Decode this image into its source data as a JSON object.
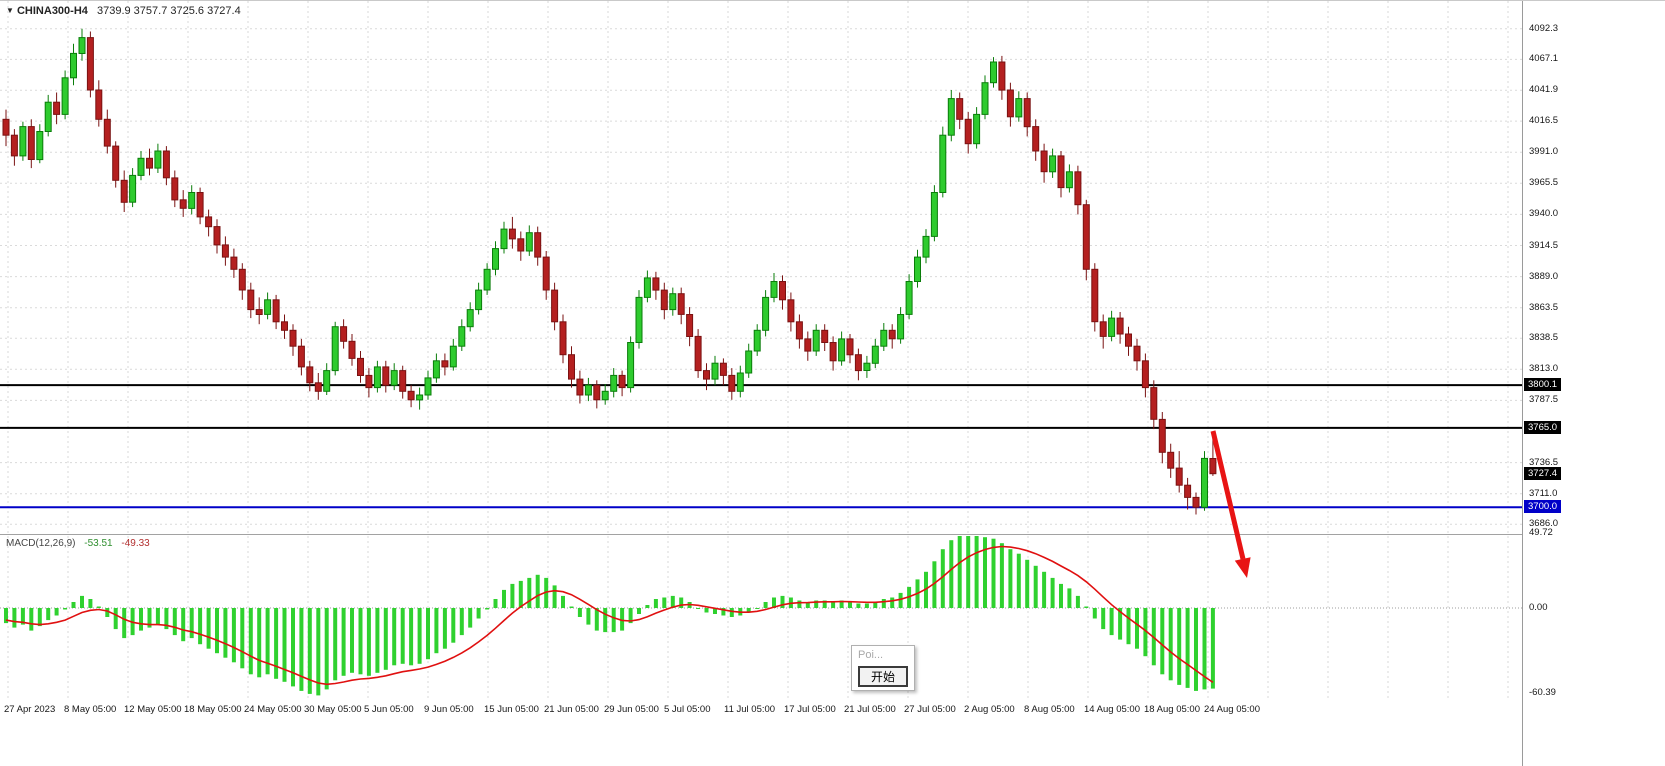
{
  "title": {
    "arrow": "▼",
    "symbol": "CHINA300-H4",
    "ohlc": "3739.9 3757.7 3725.6 3727.4"
  },
  "macd_label": {
    "name": "MACD(12,26,9)",
    "value": "-53.51",
    "signal": "-49.33"
  },
  "price_axis": {
    "labels": [
      "4092.3",
      "4067.1",
      "4041.9",
      "4016.5",
      "3991.0",
      "3965.5",
      "3940.0",
      "3914.5",
      "3889.0",
      "3863.5",
      "3838.5",
      "3813.0",
      "3787.5",
      "3736.5",
      "3711.0",
      "3686.0"
    ],
    "tags": [
      {
        "text": "3800.1",
        "bg": "#000000"
      },
      {
        "text": "3765.0",
        "bg": "#000000"
      },
      {
        "text": "3727.4",
        "bg": "#000000"
      },
      {
        "text": "3700.0",
        "bg": "#0000c8"
      }
    ],
    "macd_labels": [
      "49.72",
      "0.00",
      "-60.39"
    ]
  },
  "time_axis": {
    "labels": [
      "27 Apr 2023",
      "8 May 05:00",
      "12 May 05:00",
      "18 May 05:00",
      "24 May 05:00",
      "30 May 05:00",
      "5 Jun 05:00",
      "9 Jun 05:00",
      "15 Jun 05:00",
      "21 Jun 05:00",
      "29 Jun 05:00",
      "5 Jul 05:00",
      "11 Jul 05:00",
      "17 Jul 05:00",
      "21 Jul 05:00",
      "27 Jul 05:00",
      "2 Aug 05:00",
      "8 Aug 05:00",
      "14 Aug 05:00",
      "18 Aug 05:00",
      "24 Aug 05:00"
    ]
  },
  "popup": {
    "item": "Poi...",
    "button": "开始"
  },
  "colors": {
    "up": "#2ecb2e",
    "up_border": "#0a7d0a",
    "down": "#b42020",
    "down_border": "#7a1212",
    "histogram": "#2fd12f",
    "signal_line": "#e01010",
    "level_black": "#000000",
    "level_blue": "#0000c8",
    "arrow": "#e81414"
  },
  "chart_data": [
    {
      "type": "candlestick",
      "symbol": "CHINA300",
      "timeframe": "H4",
      "last_ohlc": {
        "open": 3739.9,
        "high": 3757.7,
        "low": 3725.6,
        "close": 3727.4
      },
      "ylim": [
        3678,
        4115
      ],
      "y_ticks": [
        4092.3,
        4067.1,
        4041.9,
        4016.5,
        3991.0,
        3965.5,
        3940.0,
        3914.5,
        3889.0,
        3863.5,
        3838.5,
        3813.0,
        3787.5,
        3736.5,
        3711.0,
        3686.0
      ],
      "x_labels": [
        "27 Apr 2023",
        "8 May 05:00",
        "12 May 05:00",
        "18 May 05:00",
        "24 May 05:00",
        "30 May 05:00",
        "5 Jun 05:00",
        "9 Jun 05:00",
        "15 Jun 05:00",
        "21 Jun 05:00",
        "29 Jun 05:00",
        "5 Jul 05:00",
        "11 Jul 05:00",
        "17 Jul 05:00",
        "21 Jul 05:00",
        "27 Jul 05:00",
        "2 Aug 05:00",
        "8 Aug 05:00",
        "14 Aug 05:00",
        "18 Aug 05:00",
        "24 Aug 05:00"
      ],
      "hlines": [
        {
          "value": 3800.1,
          "color": "#000000"
        },
        {
          "value": 3765.0,
          "color": "#000000"
        },
        {
          "value": 3700.0,
          "color": "#0000c8"
        }
      ],
      "current_price": 3727.4,
      "candles": [
        [
          4018,
          4026,
          3996,
          4005
        ],
        [
          4005,
          4010,
          3980,
          3988
        ],
        [
          3988,
          4016,
          3984,
          4012
        ],
        [
          4012,
          4018,
          3978,
          3985
        ],
        [
          3985,
          4014,
          3982,
          4008
        ],
        [
          4008,
          4038,
          4004,
          4032
        ],
        [
          4032,
          4040,
          4014,
          4022
        ],
        [
          4022,
          4058,
          4018,
          4052
        ],
        [
          4052,
          4080,
          4046,
          4072
        ],
        [
          4072,
          4092.3,
          4066,
          4085
        ],
        [
          4085,
          4090,
          4036,
          4042
        ],
        [
          4042,
          4050,
          4012,
          4018
        ],
        [
          4018,
          4026,
          3990,
          3996
        ],
        [
          3996,
          4000,
          3962,
          3968
        ],
        [
          3968,
          3976,
          3942,
          3950
        ],
        [
          3950,
          3978,
          3946,
          3972
        ],
        [
          3972,
          3992,
          3968,
          3986
        ],
        [
          3986,
          3994,
          3972,
          3978
        ],
        [
          3978,
          3998,
          3974,
          3992
        ],
        [
          3992,
          3996,
          3964,
          3970
        ],
        [
          3970,
          3976,
          3946,
          3952
        ],
        [
          3952,
          3960,
          3938,
          3945
        ],
        [
          3945,
          3964,
          3940,
          3958
        ],
        [
          3958,
          3962,
          3932,
          3938
        ],
        [
          3938,
          3944,
          3922,
          3930
        ],
        [
          3930,
          3936,
          3908,
          3915
        ],
        [
          3915,
          3922,
          3898,
          3905
        ],
        [
          3905,
          3912,
          3888,
          3895
        ],
        [
          3895,
          3900,
          3870,
          3878
        ],
        [
          3878,
          3884,
          3855,
          3862
        ],
        [
          3862,
          3872,
          3850,
          3858
        ],
        [
          3858,
          3876,
          3854,
          3870
        ],
        [
          3870,
          3874,
          3846,
          3852
        ],
        [
          3852,
          3858,
          3838,
          3845
        ],
        [
          3845,
          3850,
          3824,
          3832
        ],
        [
          3832,
          3838,
          3808,
          3815
        ],
        [
          3815,
          3820,
          3795,
          3802
        ],
        [
          3802,
          3810,
          3788,
          3795
        ],
        [
          3795,
          3818,
          3792,
          3812
        ],
        [
          3812,
          3852,
          3808,
          3848
        ],
        [
          3848,
          3854,
          3830,
          3836
        ],
        [
          3836,
          3842,
          3816,
          3822
        ],
        [
          3822,
          3828,
          3802,
          3808
        ],
        [
          3808,
          3814,
          3790,
          3798
        ],
        [
          3798,
          3820,
          3794,
          3815
        ],
        [
          3815,
          3820,
          3794,
          3800
        ],
        [
          3800,
          3818,
          3796,
          3812
        ],
        [
          3812,
          3816,
          3789,
          3795
        ],
        [
          3795,
          3800,
          3782,
          3788
        ],
        [
          3788,
          3798,
          3780,
          3792
        ],
        [
          3792,
          3812,
          3788,
          3806
        ],
        [
          3806,
          3826,
          3802,
          3820
        ],
        [
          3820,
          3826,
          3808,
          3815
        ],
        [
          3815,
          3838,
          3812,
          3832
        ],
        [
          3832,
          3854,
          3828,
          3848
        ],
        [
          3848,
          3868,
          3844,
          3862
        ],
        [
          3862,
          3884,
          3858,
          3878
        ],
        [
          3878,
          3900,
          3874,
          3895
        ],
        [
          3895,
          3918,
          3890,
          3912
        ],
        [
          3912,
          3934,
          3908,
          3928
        ],
        [
          3928,
          3938,
          3912,
          3920
        ],
        [
          3920,
          3926,
          3902,
          3910
        ],
        [
          3910,
          3931,
          3906,
          3925
        ],
        [
          3925,
          3930,
          3898,
          3905
        ],
        [
          3905,
          3910,
          3870,
          3878
        ],
        [
          3878,
          3884,
          3845,
          3852
        ],
        [
          3852,
          3858,
          3818,
          3825
        ],
        [
          3825,
          3832,
          3798,
          3805
        ],
        [
          3805,
          3812,
          3785,
          3792
        ],
        [
          3792,
          3806,
          3787,
          3800
        ],
        [
          3800,
          3804,
          3781,
          3788
        ],
        [
          3788,
          3801,
          3784,
          3795
        ],
        [
          3795,
          3814,
          3790,
          3808
        ],
        [
          3808,
          3812,
          3791,
          3798
        ],
        [
          3798,
          3840,
          3794,
          3835
        ],
        [
          3835,
          3878,
          3830,
          3872
        ],
        [
          3872,
          3894,
          3868,
          3888
        ],
        [
          3888,
          3893,
          3870,
          3878
        ],
        [
          3878,
          3884,
          3854,
          3862
        ],
        [
          3862,
          3880,
          3857,
          3875
        ],
        [
          3875,
          3880,
          3850,
          3858
        ],
        [
          3858,
          3864,
          3832,
          3840
        ],
        [
          3840,
          3846,
          3806,
          3812
        ],
        [
          3812,
          3818,
          3796,
          3805
        ],
        [
          3805,
          3824,
          3800,
          3818
        ],
        [
          3818,
          3822,
          3800,
          3808
        ],
        [
          3808,
          3814,
          3788,
          3795
        ],
        [
          3795,
          3816,
          3790,
          3810
        ],
        [
          3810,
          3834,
          3806,
          3828
        ],
        [
          3828,
          3850,
          3824,
          3845
        ],
        [
          3845,
          3878,
          3840,
          3872
        ],
        [
          3872,
          3892,
          3868,
          3885
        ],
        [
          3885,
          3890,
          3862,
          3870
        ],
        [
          3870,
          3876,
          3844,
          3852
        ],
        [
          3852,
          3858,
          3830,
          3838
        ],
        [
          3838,
          3844,
          3820,
          3828
        ],
        [
          3828,
          3850,
          3824,
          3845
        ],
        [
          3845,
          3850,
          3828,
          3835
        ],
        [
          3835,
          3840,
          3812,
          3820
        ],
        [
          3820,
          3844,
          3816,
          3838
        ],
        [
          3838,
          3842,
          3818,
          3825
        ],
        [
          3825,
          3830,
          3804,
          3812
        ],
        [
          3812,
          3824,
          3806,
          3818
        ],
        [
          3818,
          3838,
          3814,
          3832
        ],
        [
          3832,
          3851,
          3828,
          3845
        ],
        [
          3845,
          3850,
          3830,
          3838
        ],
        [
          3838,
          3864,
          3834,
          3858
        ],
        [
          3858,
          3891,
          3854,
          3885
        ],
        [
          3885,
          3911,
          3880,
          3905
        ],
        [
          3905,
          3928,
          3900,
          3922
        ],
        [
          3922,
          3964,
          3918,
          3958
        ],
        [
          3958,
          4012,
          3954,
          4005
        ],
        [
          4005,
          4042,
          4000,
          4035
        ],
        [
          4035,
          4040,
          4010,
          4018
        ],
        [
          4018,
          4024,
          3990,
          3998
        ],
        [
          3998,
          4028,
          3994,
          4022
        ],
        [
          4022,
          4054,
          4018,
          4048
        ],
        [
          4048,
          4069,
          4044,
          4065
        ],
        [
          4065,
          4070,
          4034,
          4042
        ],
        [
          4042,
          4048,
          4012,
          4020
        ],
        [
          4020,
          4041,
          4016,
          4035
        ],
        [
          4035,
          4040,
          4004,
          4012
        ],
        [
          4012,
          4018,
          3984,
          3992
        ],
        [
          3992,
          3998,
          3966,
          3975
        ],
        [
          3975,
          3994,
          3970,
          3988
        ],
        [
          3988,
          3992,
          3954,
          3962
        ],
        [
          3962,
          3981,
          3958,
          3975
        ],
        [
          3975,
          3980,
          3940,
          3948
        ],
        [
          3948,
          3952,
          3886,
          3895
        ],
        [
          3895,
          3900,
          3844,
          3852
        ],
        [
          3852,
          3858,
          3830,
          3840
        ],
        [
          3840,
          3861,
          3836,
          3855
        ],
        [
          3855,
          3860,
          3834,
          3842
        ],
        [
          3842,
          3848,
          3824,
          3832
        ],
        [
          3832,
          3838,
          3812,
          3820
        ],
        [
          3820,
          3826,
          3790,
          3798
        ],
        [
          3798,
          3804,
          3764,
          3772
        ],
        [
          3772,
          3778,
          3736,
          3745
        ],
        [
          3745,
          3752,
          3724,
          3732
        ],
        [
          3732,
          3746,
          3712,
          3718
        ],
        [
          3718,
          3724,
          3698,
          3708
        ],
        [
          3708,
          3712,
          3694,
          3700
        ],
        [
          3700,
          3746,
          3697,
          3740
        ],
        [
          3739.9,
          3757.7,
          3725.6,
          3727.4
        ]
      ]
    },
    {
      "type": "macd",
      "title": "MACD(12,26,9)",
      "macd_value": -53.51,
      "signal_value": -49.33,
      "ylim": [
        -62,
        52
      ],
      "y_ticks": [
        49.72,
        0.0,
        -60.39
      ],
      "histogram": [
        -10,
        -13,
        -11,
        -15,
        -12,
        -8,
        -5,
        -1,
        4,
        8,
        6,
        1,
        -6,
        -14,
        -20,
        -18,
        -15,
        -13,
        -11,
        -14,
        -18,
        -22,
        -20,
        -24,
        -27,
        -30,
        -33,
        -36,
        -40,
        -44,
        -46,
        -44,
        -47,
        -49,
        -52,
        -55,
        -57,
        -58,
        -54,
        -48,
        -45,
        -43,
        -44,
        -45,
        -43,
        -41,
        -38,
        -37,
        -38,
        -37,
        -34,
        -30,
        -27,
        -23,
        -18,
        -13,
        -7,
        -1,
        6,
        12,
        16,
        18,
        20,
        22,
        20,
        15,
        8,
        1,
        -6,
        -11,
        -15,
        -16,
        -16,
        -15,
        -10,
        -4,
        2,
        6,
        7,
        8,
        7,
        4,
        0,
        -3,
        -4,
        -5,
        -6,
        -5,
        -3,
        0,
        4,
        7,
        8,
        7,
        5,
        4,
        5,
        5,
        4,
        5,
        4,
        3,
        3,
        4,
        6,
        7,
        10,
        14,
        19,
        24,
        31,
        39,
        45,
        48,
        49,
        48,
        47,
        46,
        43,
        39,
        36,
        32,
        28,
        24,
        20,
        16,
        13,
        8,
        1,
        -7,
        -14,
        -18,
        -21,
        -24,
        -27,
        -32,
        -38,
        -44,
        -48,
        -51,
        -53,
        -55,
        -54,
        -53.51
      ],
      "signal": [
        -8,
        -9,
        -9.5,
        -10.5,
        -11,
        -10.5,
        -9.5,
        -8,
        -5.5,
        -3,
        -1.5,
        -1,
        -2,
        -4.5,
        -7.5,
        -9.5,
        -10.5,
        -11,
        -11,
        -11.5,
        -12.8,
        -14.6,
        -15.7,
        -17.4,
        -19.3,
        -21.4,
        -23.7,
        -26.2,
        -29,
        -32,
        -34.8,
        -36.6,
        -38.7,
        -40.8,
        -43,
        -45.4,
        -47.7,
        -49.8,
        -50.6,
        -50.1,
        -49.1,
        -47.9,
        -47.1,
        -46.7,
        -46,
        -45,
        -43.6,
        -42.3,
        -41.4,
        -40.5,
        -39.2,
        -37.4,
        -35.3,
        -32.8,
        -29.8,
        -26.4,
        -22.5,
        -18.2,
        -13.4,
        -8.3,
        -3.4,
        0.9,
        4.7,
        8.2,
        10.6,
        11.5,
        10.8,
        8.8,
        5.8,
        2.4,
        -1.1,
        -4.1,
        -6.5,
        -8.2,
        -8.6,
        -7.7,
        -5.8,
        -3.4,
        -1.3,
        0.6,
        1.9,
        2.3,
        1.8,
        0.8,
        -0.2,
        -1.2,
        -2.2,
        -2.8,
        -2.8,
        -2.2,
        -1,
        0.6,
        2.1,
        3.1,
        3.5,
        3.6,
        3.9,
        4.1,
        4.1,
        4.3,
        4.2,
        4,
        3.8,
        3.8,
        4.2,
        4.8,
        5.8,
        7.4,
        9.7,
        12.6,
        16.3,
        20.8,
        25.6,
        30.1,
        33.9,
        36.7,
        38.8,
        40.2,
        40.8,
        40.4,
        39.5,
        38,
        36,
        33.6,
        30.9,
        27.9,
        24.9,
        21.5,
        17.4,
        12.5,
        7.2,
        2.2,
        -2.4,
        -6.7,
        -10.8,
        -15,
        -19.6,
        -24.5,
        -29.2,
        -33.6,
        -37.5,
        -41.5,
        -45.5,
        -49.33
      ]
    }
  ]
}
